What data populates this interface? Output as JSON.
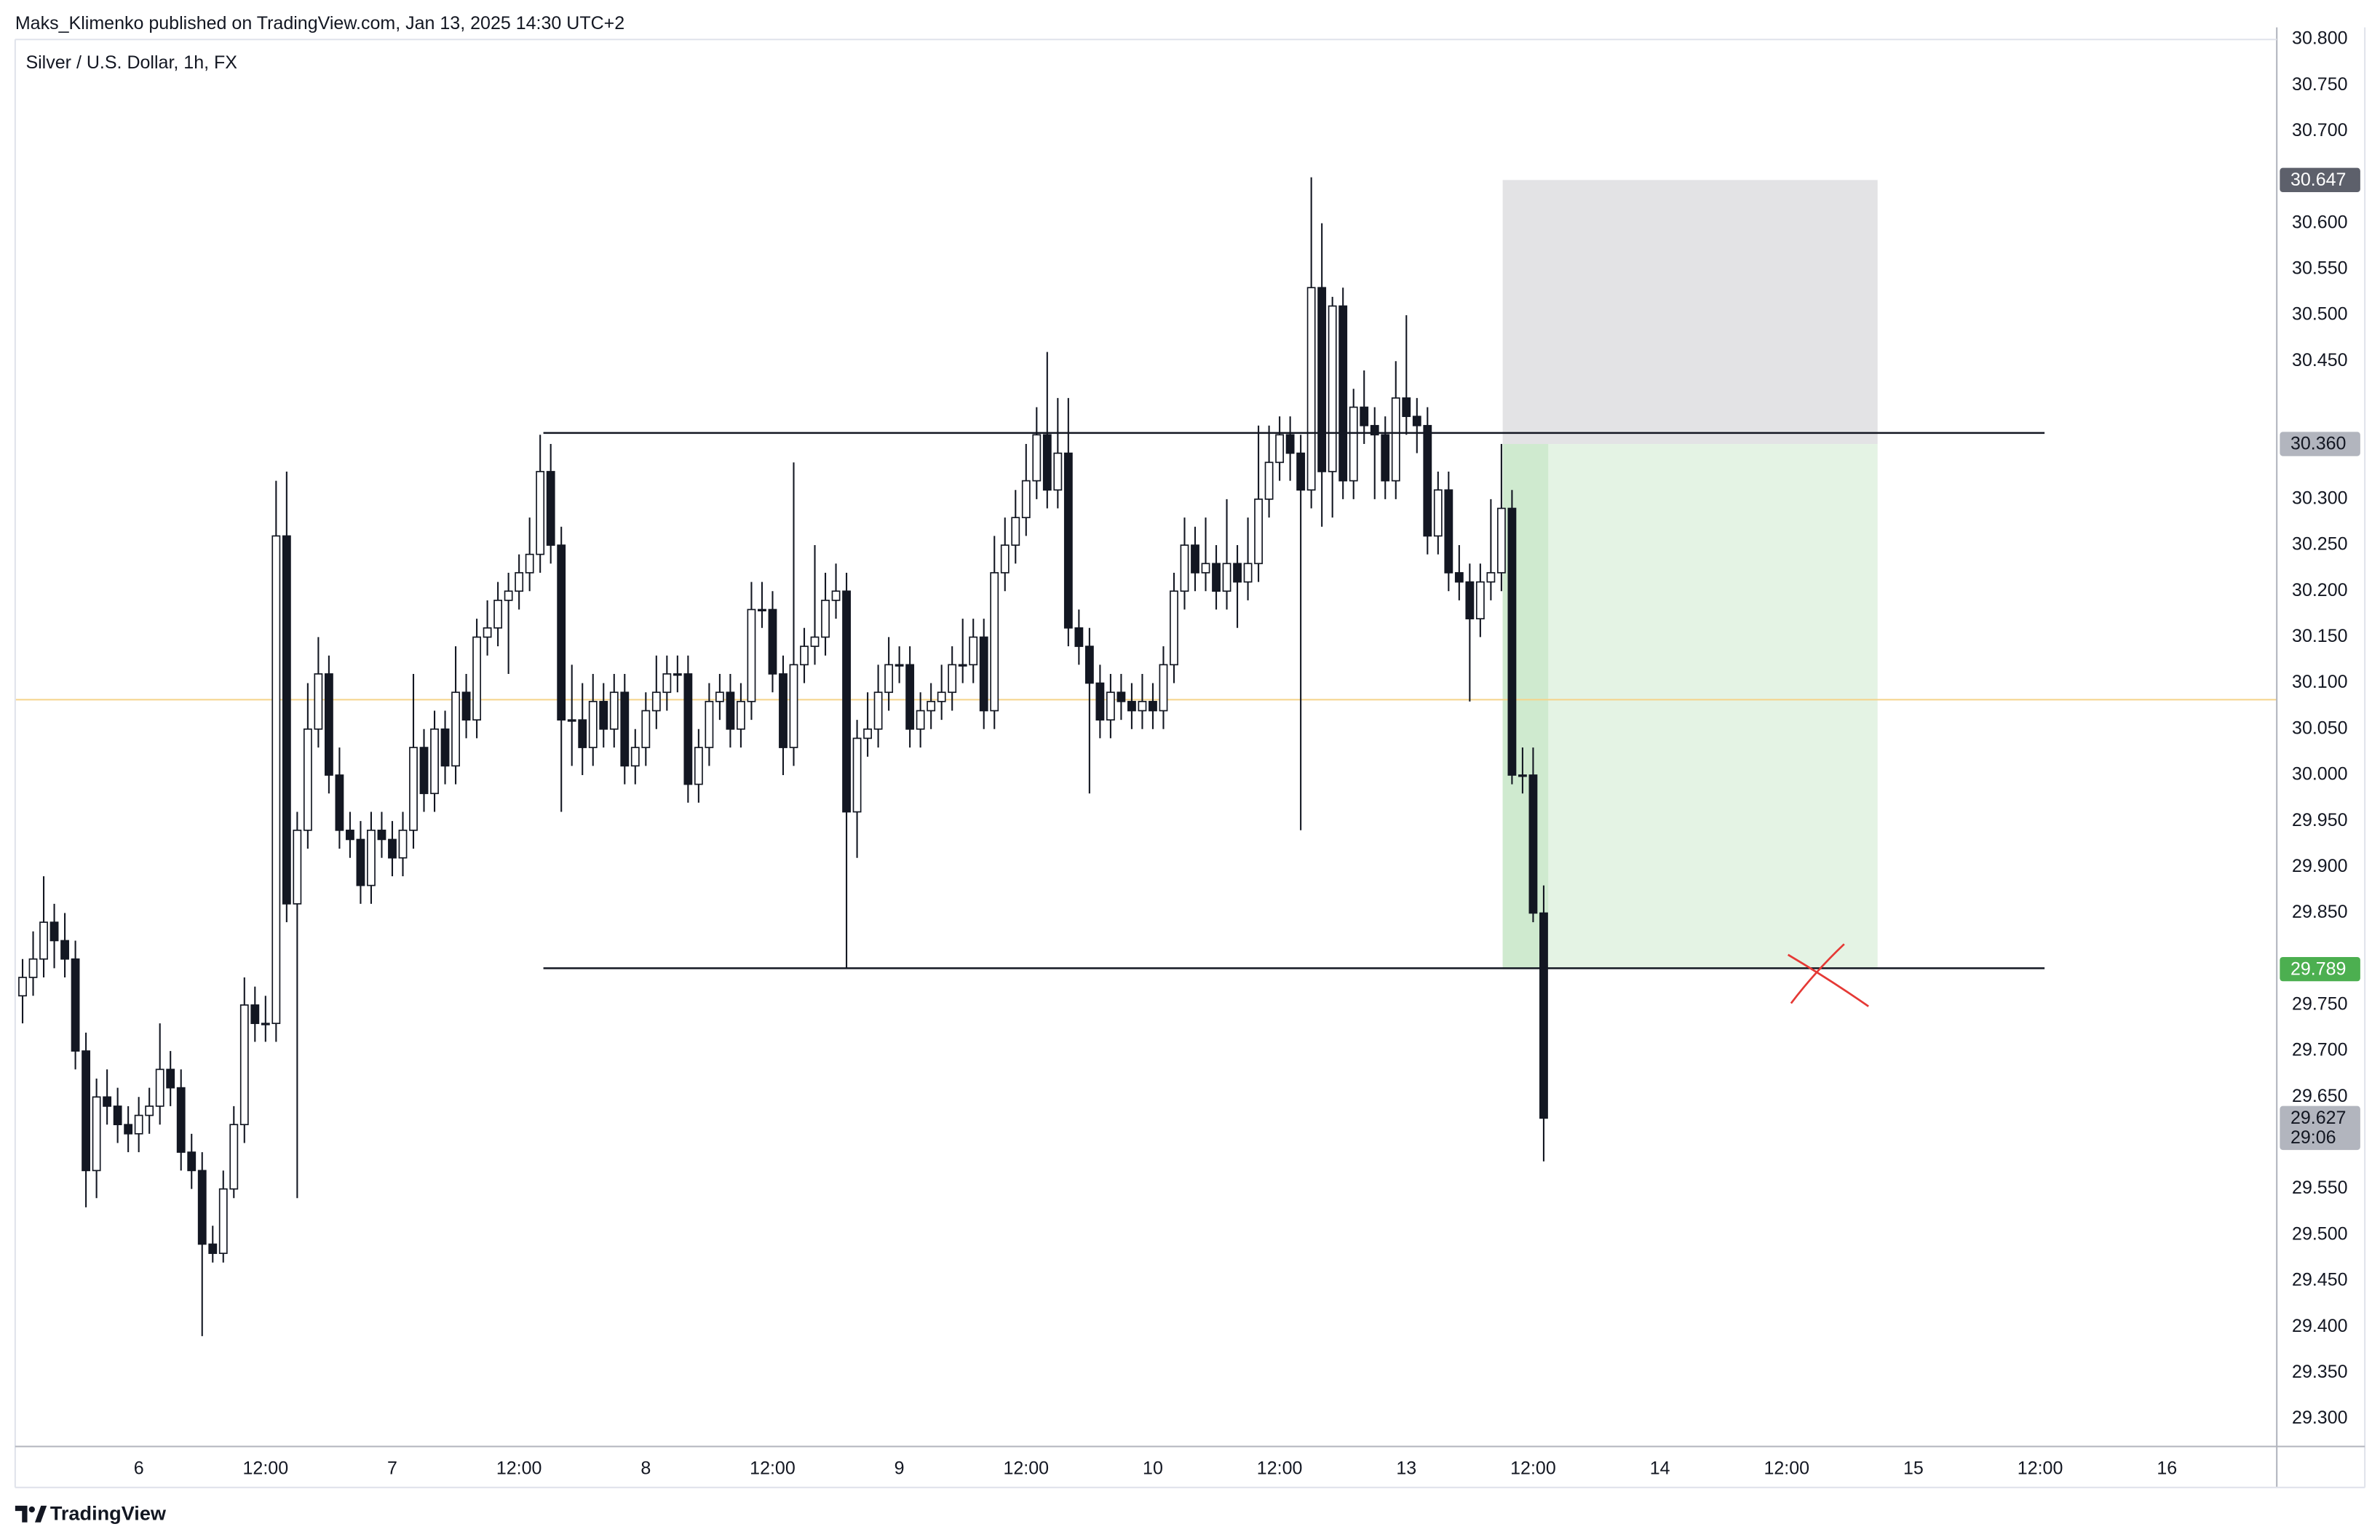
{
  "header": "Maks_Klimenko published on TradingView.com, Jan 13, 2025 14:30 UTC+2",
  "footer": "TradingView",
  "chart_data": {
    "type": "candlestick",
    "title": "Silver / U.S. Dollar, 1h, FX",
    "up_color": "#ffffff",
    "down_color": "#131722",
    "ohlc": [
      [
        29.76,
        29.8,
        29.73,
        29.78
      ],
      [
        29.78,
        29.83,
        29.76,
        29.8
      ],
      [
        29.8,
        29.89,
        29.78,
        29.84
      ],
      [
        29.84,
        29.86,
        29.79,
        29.82
      ],
      [
        29.82,
        29.85,
        29.78,
        29.8
      ],
      [
        29.8,
        29.82,
        29.68,
        29.7
      ],
      [
        29.7,
        29.72,
        29.53,
        29.57
      ],
      [
        29.57,
        29.67,
        29.54,
        29.65
      ],
      [
        29.65,
        29.68,
        29.62,
        29.64
      ],
      [
        29.64,
        29.66,
        29.6,
        29.62
      ],
      [
        29.62,
        29.64,
        29.59,
        29.61
      ],
      [
        29.61,
        29.65,
        29.59,
        29.63
      ],
      [
        29.63,
        29.66,
        29.61,
        29.64
      ],
      [
        29.64,
        29.73,
        29.62,
        29.68
      ],
      [
        29.68,
        29.7,
        29.64,
        29.66
      ],
      [
        29.66,
        29.68,
        29.57,
        29.59
      ],
      [
        29.59,
        29.61,
        29.55,
        29.57
      ],
      [
        29.57,
        29.59,
        29.39,
        29.49
      ],
      [
        29.49,
        29.51,
        29.47,
        29.48
      ],
      [
        29.48,
        29.57,
        29.47,
        29.55
      ],
      [
        29.55,
        29.64,
        29.54,
        29.62
      ],
      [
        29.62,
        29.78,
        29.6,
        29.75
      ],
      [
        29.75,
        29.77,
        29.71,
        29.73
      ],
      [
        29.73,
        29.76,
        29.71,
        29.73
      ],
      [
        29.73,
        30.32,
        29.71,
        30.26
      ],
      [
        30.26,
        30.33,
        29.84,
        29.86
      ],
      [
        29.86,
        29.96,
        29.54,
        29.94
      ],
      [
        29.94,
        30.1,
        29.92,
        30.05
      ],
      [
        30.05,
        30.15,
        30.03,
        30.11
      ],
      [
        30.11,
        30.13,
        29.98,
        30.0
      ],
      [
        30.0,
        30.03,
        29.92,
        29.94
      ],
      [
        29.94,
        29.96,
        29.91,
        29.93
      ],
      [
        29.93,
        29.95,
        29.86,
        29.88
      ],
      [
        29.88,
        29.96,
        29.86,
        29.94
      ],
      [
        29.94,
        29.96,
        29.91,
        29.93
      ],
      [
        29.93,
        29.95,
        29.89,
        29.91
      ],
      [
        29.91,
        29.96,
        29.89,
        29.94
      ],
      [
        29.94,
        30.11,
        29.92,
        30.03
      ],
      [
        30.03,
        30.05,
        29.96,
        29.98
      ],
      [
        29.98,
        30.07,
        29.96,
        30.05
      ],
      [
        30.05,
        30.07,
        29.99,
        30.01
      ],
      [
        30.01,
        30.14,
        29.99,
        30.09
      ],
      [
        30.09,
        30.11,
        30.04,
        30.06
      ],
      [
        30.06,
        30.17,
        30.04,
        30.15
      ],
      [
        30.15,
        30.19,
        30.13,
        30.16
      ],
      [
        30.16,
        30.21,
        30.14,
        30.19
      ],
      [
        30.19,
        30.22,
        30.11,
        30.2
      ],
      [
        30.2,
        30.24,
        30.18,
        30.22
      ],
      [
        30.22,
        30.28,
        30.2,
        30.24
      ],
      [
        30.24,
        30.37,
        30.22,
        30.33
      ],
      [
        30.33,
        30.36,
        30.23,
        30.25
      ],
      [
        30.25,
        30.27,
        29.96,
        30.06
      ],
      [
        30.06,
        30.12,
        30.01,
        30.06
      ],
      [
        30.06,
        30.1,
        30.0,
        30.03
      ],
      [
        30.03,
        30.11,
        30.01,
        30.08
      ],
      [
        30.08,
        30.1,
        30.03,
        30.05
      ],
      [
        30.05,
        30.11,
        30.03,
        30.09
      ],
      [
        30.09,
        30.11,
        29.99,
        30.01
      ],
      [
        30.01,
        30.05,
        29.99,
        30.03
      ],
      [
        30.03,
        30.09,
        30.01,
        30.07
      ],
      [
        30.07,
        30.13,
        30.05,
        30.09
      ],
      [
        30.09,
        30.13,
        30.07,
        30.11
      ],
      [
        30.11,
        30.13,
        30.09,
        30.11
      ],
      [
        30.11,
        30.13,
        29.97,
        29.99
      ],
      [
        29.99,
        30.05,
        29.97,
        30.03
      ],
      [
        30.03,
        30.1,
        30.01,
        30.08
      ],
      [
        30.08,
        30.11,
        30.06,
        30.09
      ],
      [
        30.09,
        30.11,
        30.03,
        30.05
      ],
      [
        30.05,
        30.1,
        30.03,
        30.08
      ],
      [
        30.08,
        30.21,
        30.06,
        30.18
      ],
      [
        30.18,
        30.21,
        30.16,
        30.18
      ],
      [
        30.18,
        30.2,
        30.09,
        30.11
      ],
      [
        30.11,
        30.13,
        30.0,
        30.03
      ],
      [
        30.03,
        30.34,
        30.01,
        30.12
      ],
      [
        30.12,
        30.16,
        30.1,
        30.14
      ],
      [
        30.14,
        30.25,
        30.12,
        30.15
      ],
      [
        30.15,
        30.22,
        30.13,
        30.19
      ],
      [
        30.19,
        30.23,
        30.17,
        30.2
      ],
      [
        30.2,
        30.22,
        29.79,
        29.96
      ],
      [
        29.96,
        30.06,
        29.91,
        30.04
      ],
      [
        30.04,
        30.09,
        30.02,
        30.05
      ],
      [
        30.05,
        30.12,
        30.03,
        30.09
      ],
      [
        30.09,
        30.15,
        30.07,
        30.12
      ],
      [
        30.12,
        30.14,
        30.1,
        30.12
      ],
      [
        30.12,
        30.14,
        30.03,
        30.05
      ],
      [
        30.05,
        30.09,
        30.03,
        30.07
      ],
      [
        30.07,
        30.1,
        30.05,
        30.08
      ],
      [
        30.08,
        30.12,
        30.06,
        30.09
      ],
      [
        30.09,
        30.14,
        30.07,
        30.12
      ],
      [
        30.12,
        30.17,
        30.1,
        30.12
      ],
      [
        30.12,
        30.17,
        30.1,
        30.15
      ],
      [
        30.15,
        30.17,
        30.05,
        30.07
      ],
      [
        30.07,
        30.26,
        30.05,
        30.22
      ],
      [
        30.22,
        30.28,
        30.2,
        30.25
      ],
      [
        30.25,
        30.31,
        30.23,
        30.28
      ],
      [
        30.28,
        30.36,
        30.26,
        30.32
      ],
      [
        30.32,
        30.4,
        30.3,
        30.37
      ],
      [
        30.37,
        30.46,
        30.29,
        30.31
      ],
      [
        30.31,
        30.41,
        30.29,
        30.35
      ],
      [
        30.35,
        30.41,
        30.14,
        30.16
      ],
      [
        30.16,
        30.18,
        30.12,
        30.14
      ],
      [
        30.14,
        30.16,
        29.98,
        30.1
      ],
      [
        30.1,
        30.12,
        30.04,
        30.06
      ],
      [
        30.06,
        30.11,
        30.04,
        30.09
      ],
      [
        30.09,
        30.11,
        30.06,
        30.08
      ],
      [
        30.08,
        30.1,
        30.05,
        30.07
      ],
      [
        30.07,
        30.11,
        30.05,
        30.08
      ],
      [
        30.08,
        30.1,
        30.05,
        30.07
      ],
      [
        30.07,
        30.14,
        30.05,
        30.12
      ],
      [
        30.12,
        30.22,
        30.1,
        30.2
      ],
      [
        30.2,
        30.28,
        30.18,
        30.25
      ],
      [
        30.25,
        30.27,
        30.2,
        30.22
      ],
      [
        30.22,
        30.28,
        30.2,
        30.23
      ],
      [
        30.23,
        30.25,
        30.18,
        30.2
      ],
      [
        30.2,
        30.3,
        30.18,
        30.23
      ],
      [
        30.23,
        30.25,
        30.16,
        30.21
      ],
      [
        30.21,
        30.28,
        30.19,
        30.23
      ],
      [
        30.23,
        30.38,
        30.21,
        30.3
      ],
      [
        30.3,
        30.38,
        30.28,
        30.34
      ],
      [
        30.34,
        30.39,
        30.32,
        30.37
      ],
      [
        30.37,
        30.39,
        30.32,
        30.35
      ],
      [
        30.35,
        30.37,
        29.94,
        30.31
      ],
      [
        30.31,
        30.65,
        30.29,
        30.53
      ],
      [
        30.53,
        30.6,
        30.27,
        30.33
      ],
      [
        30.33,
        30.52,
        30.28,
        30.51
      ],
      [
        30.51,
        30.53,
        30.3,
        30.32
      ],
      [
        30.32,
        30.42,
        30.3,
        30.4
      ],
      [
        30.4,
        30.44,
        30.36,
        30.38
      ],
      [
        30.38,
        30.4,
        30.3,
        30.37
      ],
      [
        30.37,
        30.39,
        30.3,
        30.32
      ],
      [
        30.32,
        30.45,
        30.3,
        30.41
      ],
      [
        30.41,
        30.5,
        30.37,
        30.39
      ],
      [
        30.39,
        30.41,
        30.35,
        30.38
      ],
      [
        30.38,
        30.4,
        30.24,
        30.26
      ],
      [
        30.26,
        30.33,
        30.24,
        30.31
      ],
      [
        30.31,
        30.33,
        30.2,
        30.22
      ],
      [
        30.22,
        30.25,
        30.19,
        30.21
      ],
      [
        30.21,
        30.23,
        30.08,
        30.17
      ],
      [
        30.17,
        30.23,
        30.15,
        30.21
      ],
      [
        30.21,
        30.3,
        30.19,
        30.22
      ],
      [
        30.22,
        30.36,
        30.2,
        30.29
      ],
      [
        30.29,
        30.31,
        29.99,
        30.0
      ],
      [
        30.0,
        30.03,
        29.98,
        30.0
      ],
      [
        30.0,
        30.03,
        29.84,
        29.85
      ],
      [
        29.85,
        29.88,
        29.58,
        29.627
      ]
    ],
    "ylim": [
      29.27,
      30.813
    ],
    "yticks": [
      {
        "value": 29.3,
        "label": "29.300"
      },
      {
        "value": 29.35,
        "label": "29.350"
      },
      {
        "value": 29.4,
        "label": "29.400"
      },
      {
        "value": 29.45,
        "label": "29.450"
      },
      {
        "value": 29.5,
        "label": "29.500"
      },
      {
        "value": 29.55,
        "label": "29.550"
      },
      {
        "value": 29.65,
        "label": "29.650"
      },
      {
        "value": 29.7,
        "label": "29.700"
      },
      {
        "value": 29.75,
        "label": "29.750"
      },
      {
        "value": 29.85,
        "label": "29.850"
      },
      {
        "value": 29.9,
        "label": "29.900"
      },
      {
        "value": 29.95,
        "label": "29.950"
      },
      {
        "value": 30.0,
        "label": "30.000"
      },
      {
        "value": 30.05,
        "label": "30.050"
      },
      {
        "value": 30.1,
        "label": "30.100"
      },
      {
        "value": 30.15,
        "label": "30.150"
      },
      {
        "value": 30.2,
        "label": "30.200"
      },
      {
        "value": 30.25,
        "label": "30.250"
      },
      {
        "value": 30.3,
        "label": "30.300"
      },
      {
        "value": 30.45,
        "label": "30.450"
      },
      {
        "value": 30.5,
        "label": "30.500"
      },
      {
        "value": 30.55,
        "label": "30.550"
      },
      {
        "value": 30.6,
        "label": "30.600"
      },
      {
        "value": 30.7,
        "label": "30.700"
      },
      {
        "value": 30.75,
        "label": "30.750"
      },
      {
        "value": 30.8,
        "label": "30.800"
      }
    ],
    "xlim": [
      -0.7,
      213.4
    ],
    "xticks": [
      {
        "value": 11,
        "label": "6"
      },
      {
        "value": 23,
        "label": "12:00"
      },
      {
        "value": 35,
        "label": "7"
      },
      {
        "value": 47,
        "label": "12:00"
      },
      {
        "value": 59,
        "label": "8"
      },
      {
        "value": 71,
        "label": "12:00"
      },
      {
        "value": 83,
        "label": "9"
      },
      {
        "value": 95,
        "label": "12:00"
      },
      {
        "value": 107,
        "label": "10"
      },
      {
        "value": 119,
        "label": "12:00"
      },
      {
        "value": 131,
        "label": "13"
      },
      {
        "value": 143,
        "label": "12:00"
      },
      {
        "value": 155,
        "label": "14"
      },
      {
        "value": 167,
        "label": "12:00"
      },
      {
        "value": 179,
        "label": "15"
      },
      {
        "value": 191,
        "label": "12:00"
      },
      {
        "value": 203,
        "label": "16"
      }
    ],
    "levels": [
      {
        "value": 30.372,
        "color": "#131722"
      },
      {
        "value": 29.79,
        "color": "#131722"
      }
    ],
    "mid_line": {
      "value": 30.082,
      "color": "#f5d38a"
    },
    "position": {
      "stop": 30.647,
      "entry": 30.36,
      "target": 29.789,
      "stop_color": "#e3e3e5",
      "target_color": "#e4f3e4",
      "elapsed_color": "#cfeacf"
    },
    "price_labels": [
      {
        "value": 30.647,
        "label": "30.647",
        "bg": "#5d606b",
        "fg": "#ffffff"
      },
      {
        "value": 30.36,
        "label": "30.360",
        "bg": "#b2b5be",
        "fg": "#131722"
      },
      {
        "value": 29.789,
        "label": "29.789",
        "bg": "#4caf50",
        "fg": "#ffffff"
      }
    ],
    "last_price": {
      "value": 29.627,
      "label": "29.627",
      "countdown": "29:06",
      "bg": "#b2b5be",
      "fg": "#131722"
    }
  }
}
